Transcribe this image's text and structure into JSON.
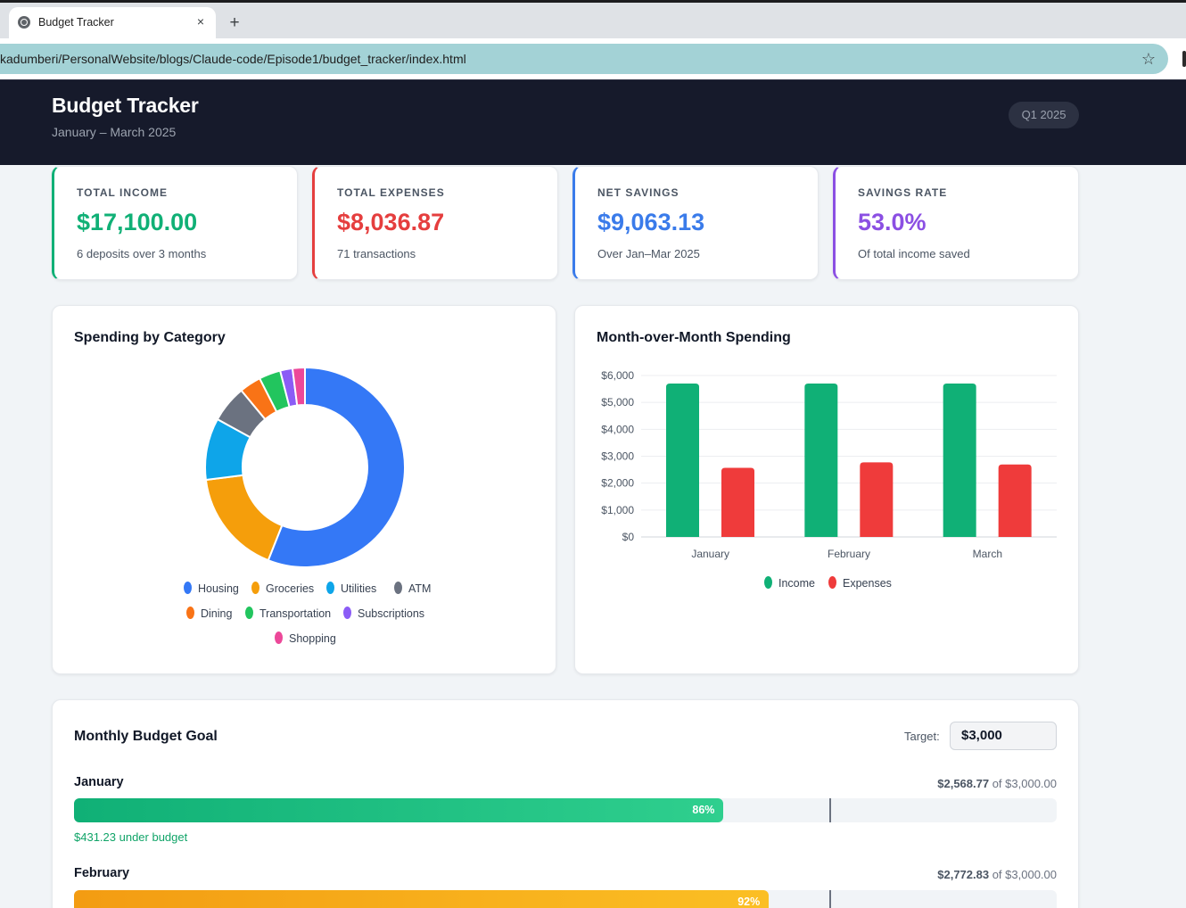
{
  "browser": {
    "tab_title": "Budget Tracker",
    "tab_close": "×",
    "new_tab": "+",
    "url": "kadumberi/PersonalWebsite/blogs/Claude-code/Episode1/budget_tracker/index.html",
    "star": "☆"
  },
  "header": {
    "title": "Budget Tracker",
    "subtitle": "January – March 2025",
    "badge": "Q1 2025"
  },
  "stats": [
    {
      "label": "TOTAL INCOME",
      "value": "$17,100.00",
      "note": "6 deposits over 3 months",
      "color": "#10b076"
    },
    {
      "label": "TOTAL EXPENSES",
      "value": "$8,036.87",
      "note": "71 transactions",
      "color": "#e53e3e"
    },
    {
      "label": "NET SAVINGS",
      "value": "$9,063.13",
      "note": "Over Jan–Mar 2025",
      "color": "#3a7bea"
    },
    {
      "label": "SAVINGS RATE",
      "value": "53.0%",
      "note": "Of total income saved",
      "color": "#8b4fe3"
    }
  ],
  "category_chart": {
    "title": "Spending by Category"
  },
  "monthly_chart": {
    "title": "Month-over-Month Spending"
  },
  "chart_data": [
    {
      "type": "pie",
      "title": "Spending by Category",
      "donut": true,
      "categories": [
        "Housing",
        "Groceries",
        "Utilities",
        "ATM",
        "Dining",
        "Transportation",
        "Subscriptions",
        "Shopping"
      ],
      "values": [
        56,
        17,
        10,
        6,
        3.5,
        3.5,
        2,
        2
      ],
      "colors": [
        "#3478f6",
        "#f59e0b",
        "#0ea5e9",
        "#6b7280",
        "#f97316",
        "#22c55e",
        "#8b5cf6",
        "#ec4899"
      ],
      "legend": "bottom"
    },
    {
      "type": "bar",
      "title": "Month-over-Month Spending",
      "categories": [
        "January",
        "February",
        "March"
      ],
      "series": [
        {
          "name": "Income",
          "values": [
            5700,
            5700,
            5700
          ],
          "color": "#10b076"
        },
        {
          "name": "Expenses",
          "values": [
            2568.77,
            2772.83,
            2695.27
          ],
          "color": "#ef3b3b"
        }
      ],
      "ylim": [
        0,
        6000
      ],
      "yticks": [
        "$0",
        "$1,000",
        "$2,000",
        "$3,000",
        "$4,000",
        "$5,000",
        "$6,000"
      ],
      "grid": true,
      "legend": "bottom"
    }
  ],
  "budget_goal": {
    "title": "Monthly Budget Goal",
    "target_label": "Target:",
    "target_value": "$3,000",
    "months": [
      {
        "name": "January",
        "spent": "$2,568.77",
        "of_text": " of $3,000.00",
        "percent_label": "86%",
        "percent": 0.86,
        "status": "$431.23 under budget",
        "color_from": "#10b076",
        "color_to": "#2fcf8e"
      },
      {
        "name": "February",
        "spent": "$2,772.83",
        "of_text": " of $3,000.00",
        "percent_label": "92%",
        "percent": 0.92,
        "color_from": "#f39c12",
        "color_to": "#fbbf24"
      }
    ]
  }
}
